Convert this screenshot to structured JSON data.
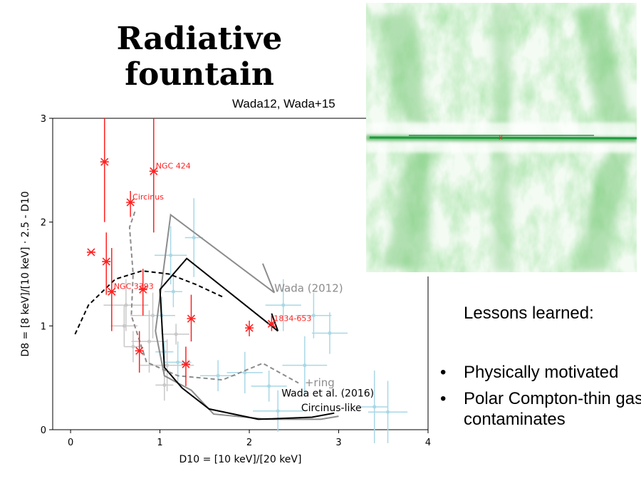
{
  "slide": {
    "title_line1": "Radiative",
    "title_line2": "fountain",
    "reference": "Wada12, Wada+15",
    "lessons_heading": "Lessons learned:",
    "bullets": [
      "Physically motivated",
      "Polar Compton-thin gas contaminates"
    ],
    "bullet_glyph": "•"
  },
  "simulation": {
    "marker": "x",
    "color": "#1a9c3c"
  },
  "chart_data": {
    "type": "scatter",
    "xlabel": "D10 = [10 keV]/[20 keV]",
    "ylabel": "D8 = [8 keV]/[10 keV] · 2.5 - D10",
    "xlim": [
      -0.2,
      4
    ],
    "ylim": [
      0,
      3
    ],
    "xticks": [
      0,
      1,
      2,
      3,
      4
    ],
    "yticks": [
      0,
      1,
      2,
      3
    ],
    "colors": {
      "red": "#ff2020",
      "lightblue": "#a8d8e6",
      "lightgray": "#c8c8c8",
      "gray": "#8c8c8c",
      "black": "#000000"
    },
    "red_points": [
      {
        "x": 0.23,
        "y": 1.71,
        "ylo": null,
        "yhi": null,
        "label": ""
      },
      {
        "x": 0.38,
        "y": 2.58,
        "ylo": 2.0,
        "yhi": 3.0,
        "label": ""
      },
      {
        "x": 0.4,
        "y": 1.62,
        "ylo": 1.3,
        "yhi": 1.9,
        "label": ""
      },
      {
        "x": 0.46,
        "y": 1.33,
        "ylo": 0.95,
        "yhi": 1.75,
        "label": "NGC 3393"
      },
      {
        "x": 0.67,
        "y": 2.19,
        "ylo": 2.05,
        "yhi": 2.3,
        "label": "Circinus"
      },
      {
        "x": 0.77,
        "y": 0.76,
        "ylo": 0.55,
        "yhi": 0.95,
        "label": ""
      },
      {
        "x": 0.81,
        "y": 1.35,
        "ylo": 1.1,
        "yhi": 1.55,
        "label": ""
      },
      {
        "x": 0.93,
        "y": 2.49,
        "ylo": 1.9,
        "yhi": 3.0,
        "label": "NGC 424"
      },
      {
        "x": 1.29,
        "y": 0.63,
        "ylo": 0.42,
        "yhi": 0.8,
        "label": ""
      },
      {
        "x": 1.35,
        "y": 1.07,
        "ylo": 0.85,
        "yhi": 1.3,
        "label": ""
      },
      {
        "x": 2.0,
        "y": 0.98,
        "ylo": 0.9,
        "yhi": 1.05,
        "label": ""
      },
      {
        "x": 2.25,
        "y": 1.02,
        "ylo": 0.95,
        "yhi": 1.1,
        "label": "1834-653"
      }
    ],
    "blue_points": [
      {
        "x": 1.02,
        "y": 1.1,
        "ex": 0.12,
        "ey": 0.18
      },
      {
        "x": 1.12,
        "y": 1.68,
        "ex": 0.18,
        "ey": 0.28
      },
      {
        "x": 1.15,
        "y": 1.33,
        "ex": 0.1,
        "ey": 0.15
      },
      {
        "x": 1.2,
        "y": 0.65,
        "ex": 0.15,
        "ey": 0.2
      },
      {
        "x": 1.38,
        "y": 1.85,
        "ex": 0.1,
        "ey": 0.38
      },
      {
        "x": 1.65,
        "y": 0.52,
        "ex": 0.2,
        "ey": 0.15
      },
      {
        "x": 1.95,
        "y": 0.55,
        "ex": 0.2,
        "ey": 0.2
      },
      {
        "x": 2.22,
        "y": 0.42,
        "ex": 0.2,
        "ey": 0.15
      },
      {
        "x": 2.32,
        "y": 0.18,
        "ex": 0.28,
        "ey": 0.2
      },
      {
        "x": 2.38,
        "y": 1.2,
        "ex": 0.2,
        "ey": 0.25
      },
      {
        "x": 2.62,
        "y": 0.62,
        "ex": 0.25,
        "ey": 0.28
      },
      {
        "x": 2.72,
        "y": 1.1,
        "ex": 0.2,
        "ey": 0.22
      },
      {
        "x": 2.9,
        "y": 0.93,
        "ex": 0.2,
        "ey": 0.2
      },
      {
        "x": 3.4,
        "y": 0.22,
        "ex": 0.15,
        "ey": 0.35
      },
      {
        "x": 3.55,
        "y": 0.17,
        "ex": 0.22,
        "ey": 0.3
      },
      {
        "x": 1.05,
        "y": 0.75,
        "ex": 0.1,
        "ey": 0.1
      }
    ],
    "gray_points": [
      {
        "x": 0.62,
        "y": 1.2,
        "ex": 0.25,
        "ey": 0.25
      },
      {
        "x": 0.7,
        "y": 0.8,
        "ex": 0.1,
        "ey": 0.15
      },
      {
        "x": 0.88,
        "y": 0.85,
        "ex": 0.2,
        "ey": 0.3
      },
      {
        "x": 0.92,
        "y": 1.1,
        "ex": 0.25,
        "ey": 0.22
      },
      {
        "x": 1.05,
        "y": 0.43,
        "ex": 0.1,
        "ey": 0.15
      },
      {
        "x": 1.08,
        "y": 0.62,
        "ex": 0.3,
        "ey": 0.25
      },
      {
        "x": 0.6,
        "y": 1.0,
        "ex": 0.15,
        "ey": 0.2
      },
      {
        "x": 1.18,
        "y": 0.92,
        "ex": 0.15,
        "ey": 0.1
      }
    ],
    "series": [
      {
        "name": "Wada (2012)",
        "color": "#8c8c8c",
        "style": "solid",
        "points": [
          [
            2.28,
            1.32
          ],
          [
            1.12,
            2.07
          ],
          [
            0.95,
            0.95
          ],
          [
            1.05,
            0.52
          ],
          [
            1.35,
            0.38
          ],
          [
            1.6,
            0.15
          ],
          [
            2.2,
            0.1
          ],
          [
            2.8,
            0.1
          ],
          [
            3.0,
            0.13
          ]
        ]
      },
      {
        "name": "",
        "color": "#8c8c8c",
        "style": "solid",
        "points": [
          [
            2.15,
            1.6
          ],
          [
            2.28,
            1.32
          ]
        ]
      },
      {
        "name": "Wada et al. (2016) Circinus-like",
        "color": "#000000",
        "style": "solid",
        "points": [
          [
            2.32,
            0.95
          ],
          [
            1.3,
            1.65
          ],
          [
            1.0,
            1.35
          ],
          [
            1.05,
            0.6
          ],
          [
            1.25,
            0.4
          ],
          [
            1.55,
            0.2
          ],
          [
            2.1,
            0.1
          ],
          [
            2.7,
            0.12
          ],
          [
            2.95,
            0.16
          ]
        ]
      },
      {
        "name": "",
        "color": "#000000",
        "style": "solid",
        "points": [
          [
            2.25,
            1.12
          ],
          [
            2.32,
            0.95
          ]
        ]
      },
      {
        "name": "",
        "color": "#000000",
        "style": "dashed",
        "points": [
          [
            0.05,
            0.92
          ],
          [
            0.2,
            1.2
          ],
          [
            0.5,
            1.45
          ],
          [
            0.8,
            1.53
          ],
          [
            1.1,
            1.5
          ],
          [
            1.4,
            1.4
          ],
          [
            1.7,
            1.28
          ]
        ]
      },
      {
        "name": "+ring",
        "color": "#8c8c8c",
        "style": "dashed",
        "points": [
          [
            0.72,
            2.1
          ],
          [
            0.66,
            1.95
          ],
          [
            0.7,
            1.5
          ],
          [
            0.68,
            1.1
          ],
          [
            0.85,
            0.65
          ],
          [
            1.2,
            0.52
          ],
          [
            1.7,
            0.48
          ],
          [
            2.15,
            0.64
          ],
          [
            2.55,
            0.45
          ]
        ]
      }
    ],
    "annotations": [
      {
        "text": "Wada (2012)",
        "x": 2.28,
        "y": 1.33,
        "color": "#8c8c8c",
        "size": 15
      },
      {
        "text": "+ring",
        "x": 2.62,
        "y": 0.42,
        "color": "#8c8c8c",
        "size": 15
      },
      {
        "text": "Wada et al. (2016)",
        "x": 2.36,
        "y": 0.32,
        "color": "#000000",
        "size": 14
      },
      {
        "text": "Circinus-like",
        "x": 2.58,
        "y": 0.18,
        "color": "#000000",
        "size": 14
      }
    ]
  }
}
